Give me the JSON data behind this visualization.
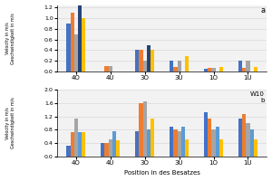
{
  "subplot_a": {
    "label": "a",
    "categories": [
      "4O",
      "4U",
      "3O",
      "3U",
      "1O",
      "1U"
    ],
    "series_order": [
      "blue",
      "orange",
      "gray",
      "dark_blue",
      "yellow"
    ],
    "series": {
      "blue": [
        0.9,
        0.0,
        0.4,
        0.2,
        0.05,
        0.2
      ],
      "orange": [
        1.1,
        0.1,
        0.4,
        0.08,
        0.07,
        0.07
      ],
      "gray": [
        0.7,
        0.1,
        0.2,
        0.2,
        0.07,
        0.2
      ],
      "dark_blue": [
        1.3,
        0.0,
        0.5,
        0.0,
        0.0,
        0.0
      ],
      "yellow": [
        1.0,
        0.0,
        0.4,
        0.28,
        0.08,
        0.08
      ]
    },
    "ylim": [
      0,
      1.25
    ],
    "yticks": [
      0,
      0.2,
      0.4,
      0.6,
      0.8,
      1.0,
      1.2
    ],
    "ylabel": "Velocity in m/s\nGeschwindigkeit in m/s"
  },
  "subplot_b": {
    "label": "b",
    "label2": "W10",
    "categories": [
      "4O",
      "4U",
      "3O",
      "3U",
      "1O",
      "1U"
    ],
    "series_order": [
      "blue",
      "orange",
      "gray",
      "light_blue",
      "yellow"
    ],
    "series": {
      "blue": [
        0.33,
        0.4,
        0.75,
        0.88,
        1.33,
        1.15
      ],
      "orange": [
        0.73,
        0.4,
        1.6,
        0.8,
        1.13,
        1.27
      ],
      "gray": [
        1.13,
        0.5,
        1.65,
        0.75,
        0.8,
        1.0
      ],
      "light_blue": [
        0.73,
        0.75,
        0.8,
        0.88,
        0.88,
        0.82
      ],
      "yellow": [
        0.73,
        0.47,
        1.13,
        0.5,
        0.5,
        0.5
      ]
    },
    "ylim": [
      0,
      2.0
    ],
    "yticks": [
      0,
      0.4,
      0.8,
      1.2,
      1.6,
      2.0
    ],
    "ylabel": "Velocity in m/s\nGeschwindigkeit in m/s",
    "xlabel": "Position in des Besatzes"
  },
  "colors": {
    "blue": "#4472C4",
    "orange": "#ED7D31",
    "gray": "#A5A5A5",
    "dark_blue": "#264478",
    "light_blue": "#5B9BD5",
    "yellow": "#FFC000"
  },
  "bar_width": 0.11,
  "figsize": [
    3.0,
    2.0
  ],
  "dpi": 100,
  "bg_color": "#F2F2F2"
}
